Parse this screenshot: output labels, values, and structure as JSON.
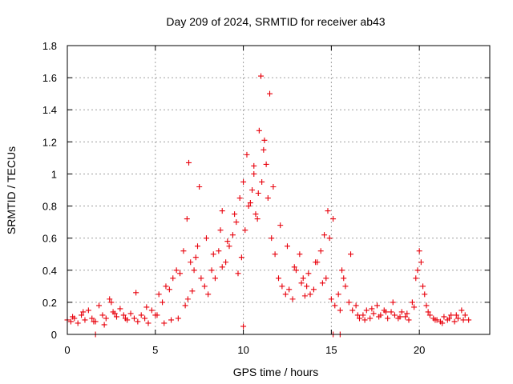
{
  "chart_data": {
    "type": "scatter",
    "title": "Day 209 of 2024, SRMTID for receiver ab43",
    "xlabel": "GPS time / hours",
    "ylabel": "SRMTID / TECUs",
    "xlim": [
      0,
      24
    ],
    "ylim": [
      0,
      1.8
    ],
    "xticks": [
      0,
      5,
      10,
      15,
      20
    ],
    "xtick_labels": [
      "0",
      "5",
      "10",
      "15",
      "20"
    ],
    "yticks": [
      0,
      0.2,
      0.4,
      0.6,
      0.8,
      1.0,
      1.2,
      1.4,
      1.6,
      1.8
    ],
    "ytick_labels": [
      "0",
      "0.2",
      "0.4",
      "0.6",
      "0.8",
      "1",
      "1.2",
      "1.4",
      "1.6",
      "1.8"
    ],
    "grid": true,
    "marker": "plus",
    "series": [
      {
        "name": "SRMTID",
        "color": "#e8000b",
        "x": [
          0.0,
          0.2,
          0.4,
          0.6,
          0.8,
          1.0,
          1.2,
          1.4,
          1.6,
          1.8,
          2.0,
          2.2,
          2.4,
          2.6,
          2.8,
          3.0,
          3.2,
          3.4,
          3.6,
          3.8,
          4.0,
          4.2,
          4.4,
          4.6,
          4.8,
          5.0,
          5.2,
          5.4,
          5.6,
          5.8,
          6.0,
          6.2,
          6.4,
          6.6,
          6.8,
          6.9,
          7.0,
          7.2,
          7.4,
          7.6,
          7.8,
          8.0,
          8.2,
          8.4,
          8.6,
          8.8,
          9.0,
          9.2,
          9.4,
          9.6,
          9.8,
          10.0,
          10.2,
          10.4,
          10.6,
          10.8,
          10.9,
          11.0,
          11.2,
          11.4,
          11.6,
          11.8,
          12.0,
          12.2,
          12.4,
          12.6,
          12.8,
          13.0,
          13.2,
          13.4,
          13.6,
          13.8,
          14.0,
          14.2,
          14.4,
          14.6,
          14.8,
          15.0,
          15.2,
          15.4,
          15.6,
          15.8,
          16.0,
          16.2,
          16.4,
          16.6,
          16.8,
          17.0,
          17.2,
          17.4,
          17.6,
          17.8,
          18.0,
          18.2,
          18.4,
          18.6,
          18.8,
          19.0,
          19.2,
          19.4,
          19.6,
          19.8,
          20.0,
          20.2,
          20.4,
          20.6,
          20.8,
          21.0,
          21.2,
          21.4,
          21.6,
          21.8,
          22.0,
          22.2,
          22.4,
          22.6,
          22.8,
          0.3,
          0.9,
          1.5,
          2.1,
          2.5,
          2.7,
          3.3,
          3.9,
          4.5,
          5.1,
          5.5,
          5.9,
          6.3,
          6.7,
          6.85,
          7.1,
          7.3,
          7.5,
          7.9,
          8.3,
          8.7,
          8.8,
          9.1,
          9.5,
          9.7,
          9.9,
          10.1,
          10.3,
          10.5,
          10.6,
          10.7,
          10.85,
          11.05,
          11.15,
          11.3,
          11.5,
          11.7,
          12.1,
          12.5,
          12.9,
          13.3,
          13.5,
          13.7,
          14.1,
          14.5,
          14.7,
          14.9,
          15.1,
          15.5,
          15.7,
          16.1,
          16.5,
          16.9,
          17.3,
          17.7,
          18.1,
          18.5,
          18.9,
          19.3,
          19.7,
          19.9,
          20.1,
          20.3,
          20.5,
          20.9,
          21.3,
          21.7,
          22.1,
          22.5,
          1.6,
          15.1,
          15.5,
          10.0
        ],
        "y": [
          0.09,
          0.08,
          0.1,
          0.07,
          0.12,
          0.09,
          0.15,
          0.1,
          0.08,
          0.18,
          0.12,
          0.1,
          0.22,
          0.14,
          0.11,
          0.16,
          0.12,
          0.09,
          0.13,
          0.1,
          0.08,
          0.12,
          0.1,
          0.07,
          0.15,
          0.12,
          0.25,
          0.2,
          0.3,
          0.28,
          0.35,
          0.4,
          0.38,
          0.52,
          0.72,
          1.07,
          0.45,
          0.4,
          0.55,
          0.35,
          0.3,
          0.25,
          0.4,
          0.35,
          0.52,
          0.77,
          0.45,
          0.55,
          0.62,
          0.7,
          0.85,
          0.95,
          1.12,
          0.82,
          1.05,
          0.72,
          1.27,
          1.61,
          1.21,
          0.85,
          0.6,
          0.5,
          0.35,
          0.3,
          0.25,
          0.28,
          0.22,
          0.4,
          0.5,
          0.35,
          0.3,
          0.25,
          0.28,
          0.45,
          0.52,
          0.62,
          0.77,
          0.22,
          0.18,
          0.25,
          0.4,
          0.3,
          0.2,
          0.15,
          0.18,
          0.1,
          0.12,
          0.15,
          0.1,
          0.13,
          0.18,
          0.12,
          0.15,
          0.1,
          0.14,
          0.12,
          0.1,
          0.14,
          0.11,
          0.09,
          0.2,
          0.35,
          0.52,
          0.3,
          0.18,
          0.12,
          0.1,
          0.09,
          0.08,
          0.11,
          0.09,
          0.12,
          0.08,
          0.1,
          0.15,
          0.12,
          0.09,
          0.11,
          0.14,
          0.08,
          0.06,
          0.2,
          0.13,
          0.1,
          0.26,
          0.17,
          0.12,
          0.07,
          0.09,
          0.1,
          0.18,
          0.22,
          0.27,
          0.48,
          0.92,
          0.6,
          0.5,
          0.65,
          0.42,
          0.58,
          0.75,
          0.38,
          0.48,
          0.65,
          0.8,
          0.9,
          1.0,
          0.75,
          0.88,
          0.95,
          1.15,
          1.06,
          1.5,
          0.92,
          0.68,
          0.55,
          0.42,
          0.32,
          0.24,
          0.38,
          0.45,
          0.32,
          0.35,
          0.6,
          0.72,
          0.15,
          0.35,
          0.5,
          0.12,
          0.09,
          0.16,
          0.11,
          0.14,
          0.2,
          0.11,
          0.13,
          0.17,
          0.4,
          0.45,
          0.25,
          0.14,
          0.09,
          0.07,
          0.1,
          0.12,
          0.09,
          0.0,
          0.0,
          0.0,
          0.05
        ]
      }
    ]
  }
}
